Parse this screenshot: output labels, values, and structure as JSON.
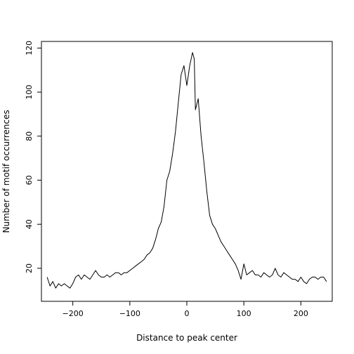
{
  "chart_data": {
    "type": "line",
    "title": "",
    "xlabel": "Distance to peak center",
    "ylabel": "Number of motif occurrences",
    "xlim": [
      -255,
      255
    ],
    "ylim": [
      5,
      123
    ],
    "xticks": [
      -200,
      -100,
      0,
      100,
      200
    ],
    "yticks": [
      20,
      40,
      60,
      80,
      100,
      120
    ],
    "grid": false,
    "legend": null,
    "line_color": "#000000",
    "series": [
      {
        "x": [
          -245,
          -240,
          -235,
          -230,
          -225,
          -220,
          -215,
          -210,
          -205,
          -200,
          -195,
          -190,
          -185,
          -180,
          -175,
          -170,
          -165,
          -160,
          -155,
          -150,
          -145,
          -140,
          -135,
          -130,
          -125,
          -120,
          -115,
          -110,
          -105,
          -100,
          -95,
          -90,
          -85,
          -80,
          -75,
          -70,
          -65,
          -60,
          -55,
          -50,
          -45,
          -40,
          -35,
          -30,
          -25,
          -20,
          -15,
          -10,
          -5,
          0,
          5,
          10,
          13,
          15,
          20,
          25,
          30,
          35,
          40,
          45,
          50,
          55,
          60,
          65,
          70,
          75,
          80,
          85,
          90,
          95,
          100,
          105,
          110,
          115,
          120,
          125,
          130,
          135,
          140,
          145,
          150,
          155,
          160,
          165,
          170,
          175,
          180,
          185,
          190,
          195,
          200,
          205,
          210,
          215,
          220,
          225,
          230,
          235,
          240,
          245
        ],
        "y": [
          16,
          12,
          14,
          11,
          13,
          12,
          13,
          12,
          11,
          13,
          16,
          17,
          15,
          17,
          16,
          15,
          17,
          19,
          17,
          16,
          16,
          17,
          16,
          17,
          18,
          18,
          17,
          18,
          18,
          19,
          20,
          21,
          22,
          23,
          24,
          26,
          27,
          29,
          33,
          38,
          41,
          48,
          60,
          64,
          72,
          82,
          95,
          108,
          112,
          103,
          112,
          118,
          115,
          92,
          97,
          80,
          68,
          55,
          44,
          40,
          38,
          35,
          32,
          30,
          28,
          26,
          24,
          22,
          19,
          15,
          22,
          17,
          18,
          19,
          17,
          17,
          16,
          18,
          17,
          16,
          17,
          20,
          17,
          16,
          18,
          17,
          16,
          15,
          15,
          14,
          16,
          14,
          13,
          15,
          16,
          16,
          15,
          16,
          16,
          14
        ]
      }
    ]
  }
}
